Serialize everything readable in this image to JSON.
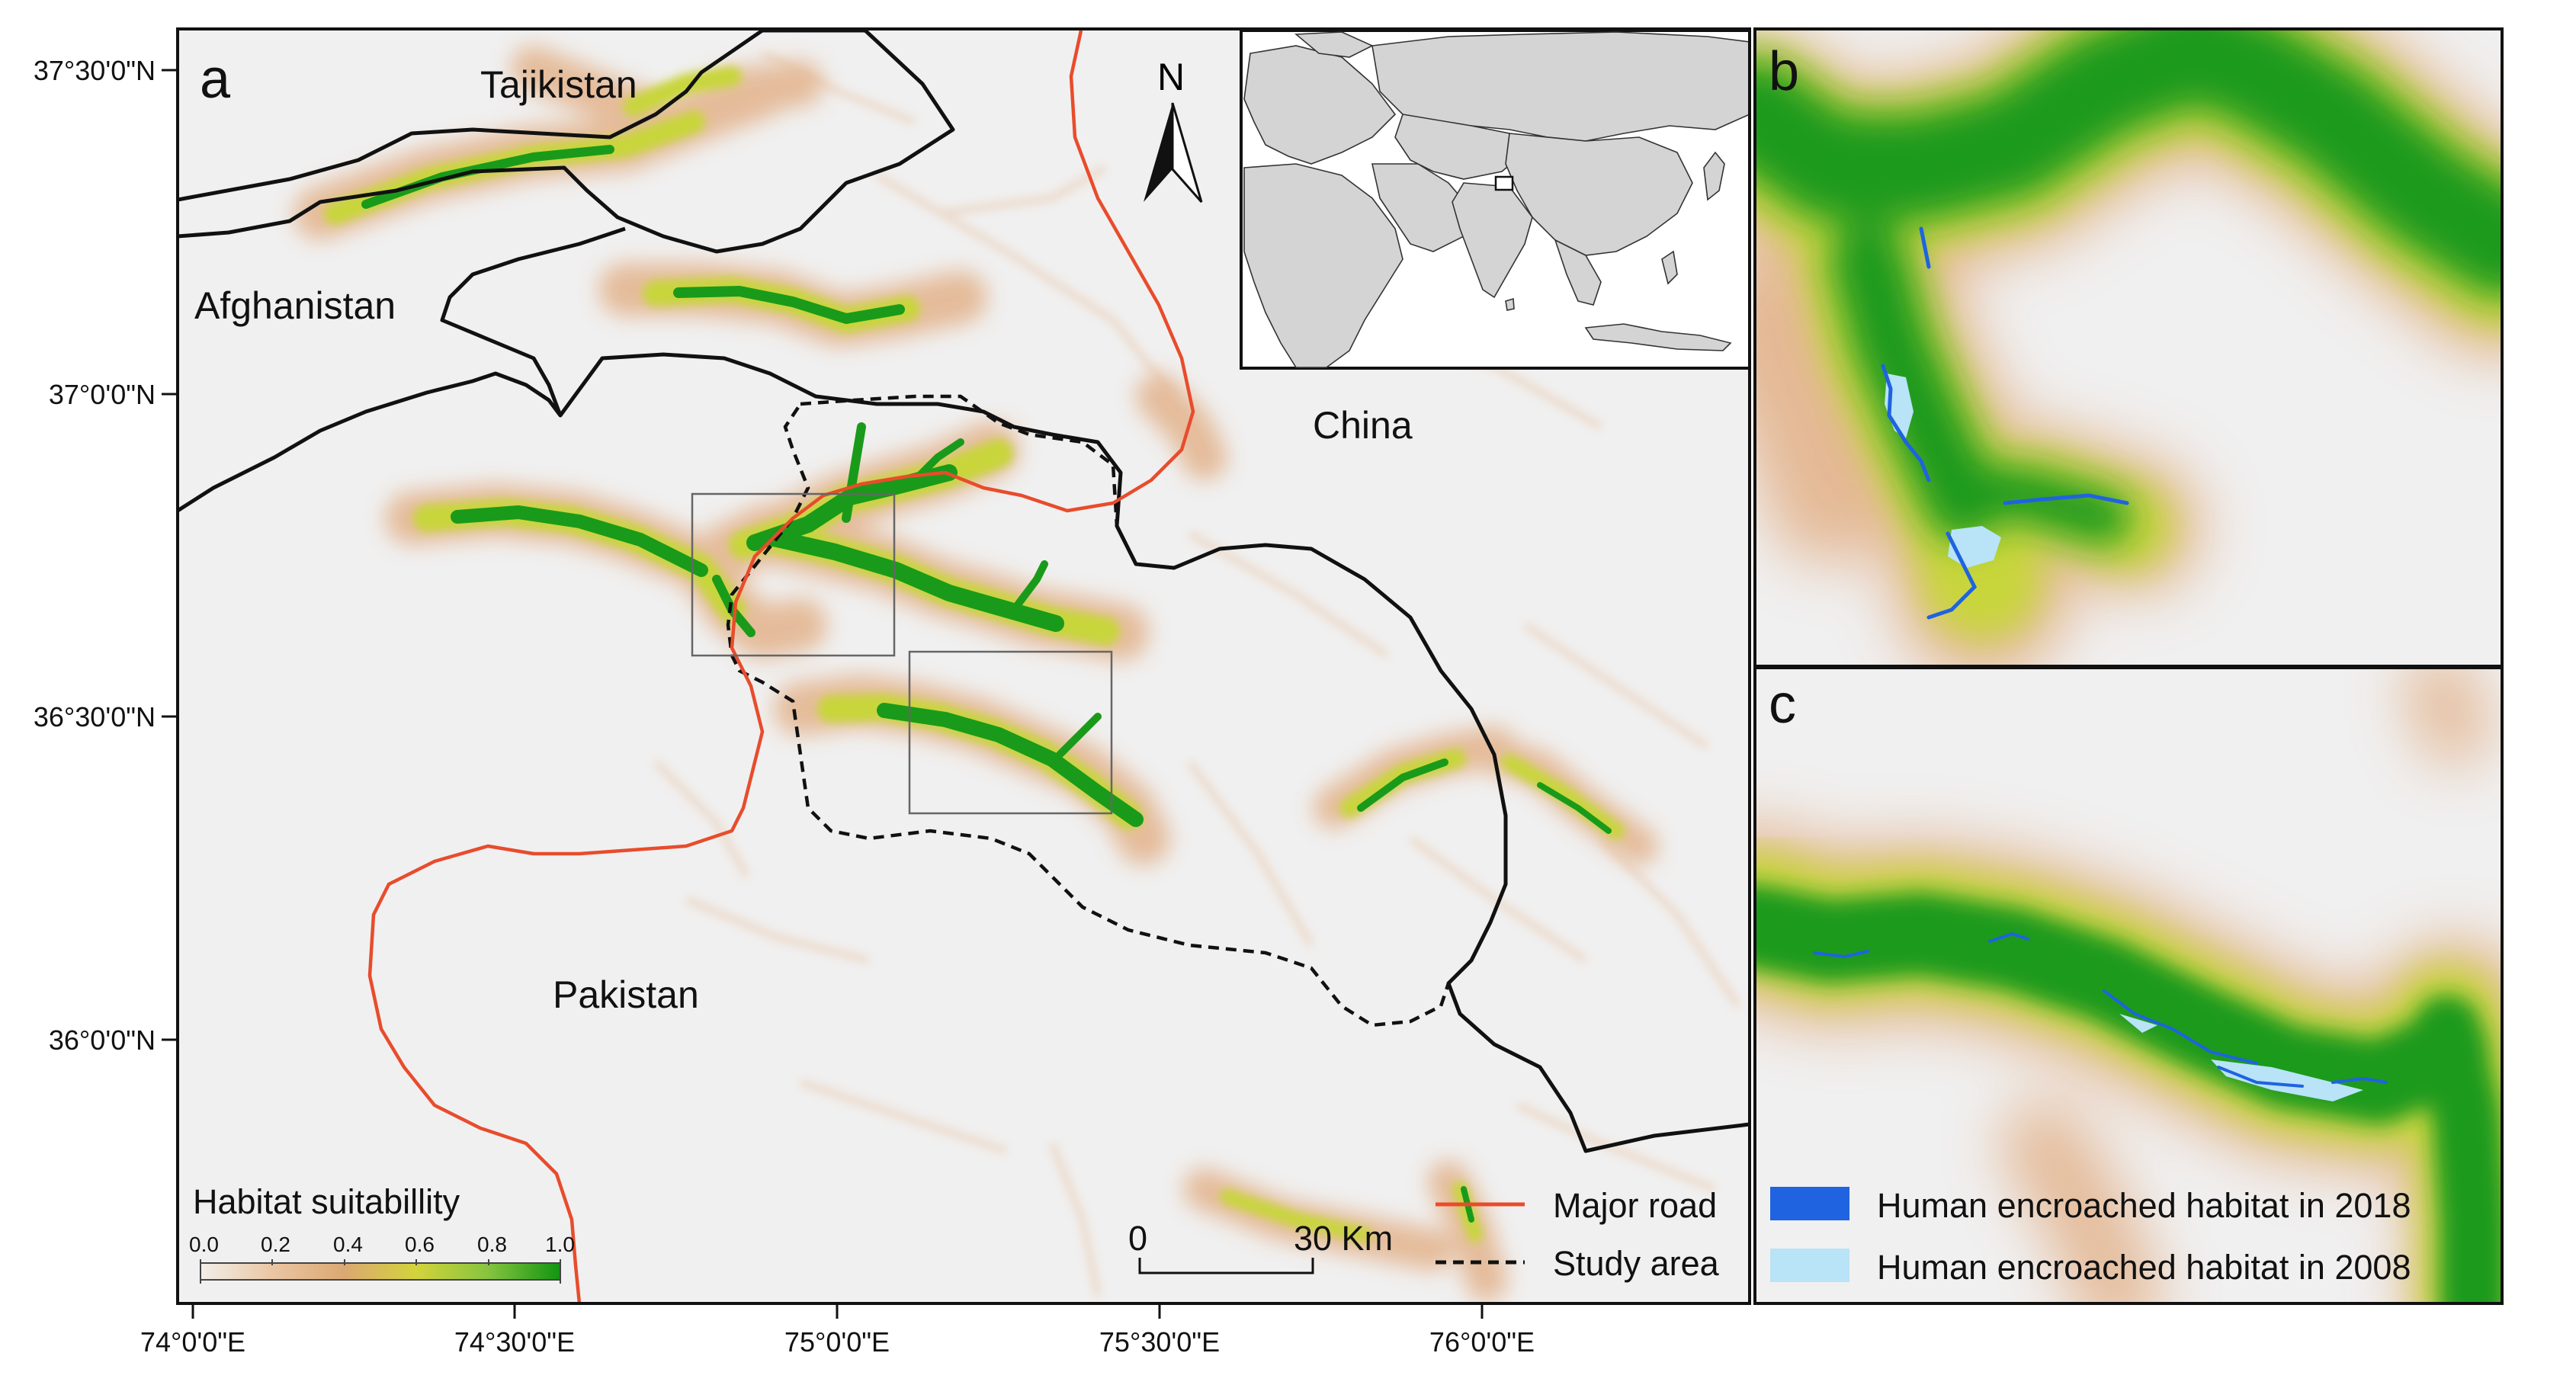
{
  "panels": {
    "a": "a",
    "b": "b",
    "c": "c"
  },
  "latitude_labels": [
    "37°30'0\"N",
    "37°0'0\"N",
    "36°30'0\"N",
    "36°0'0\"N"
  ],
  "longitude_labels": [
    "74°0'0\"E",
    "74°30'0\"E",
    "75°0'0\"E",
    "75°30'0\"E",
    "76°0'0\"E"
  ],
  "places": {
    "tajikistan": "Tajikistan",
    "afghanistan": "Afghanistan",
    "china": "China",
    "pakistan": "Pakistan"
  },
  "north_arrow": "N",
  "scale_bar": {
    "start": "0",
    "end": "30 Km"
  },
  "habitat_legend": {
    "title": "Habitat suitabillity",
    "ticks": [
      "0.0",
      "0.2",
      "0.4",
      "0.6",
      "0.8",
      "1.0"
    ],
    "colors": [
      "#f2efe9",
      "#e8c4a4",
      "#d9a574",
      "#cfd23a",
      "#8cc63f",
      "#1a9a1a"
    ]
  },
  "map_legend": {
    "road": "Major road",
    "study_area": "Study area"
  },
  "encroach_legend": {
    "y2018": "Human encroached habitat in 2018",
    "y2008": "Human encroached habitat in 2008"
  },
  "colors": {
    "road": "#e84c2c",
    "border": "#111111",
    "background": "#f0f0f0",
    "encroach_2018": "#1f63e0",
    "encroach_2008": "#b9e3f7",
    "habitat_high": "#1a9a1a",
    "habitat_mid": "#c8d63a",
    "habitat_low": "#e3b38c"
  },
  "icons": [
    "north-arrow-icon",
    "world-inset-map"
  ]
}
